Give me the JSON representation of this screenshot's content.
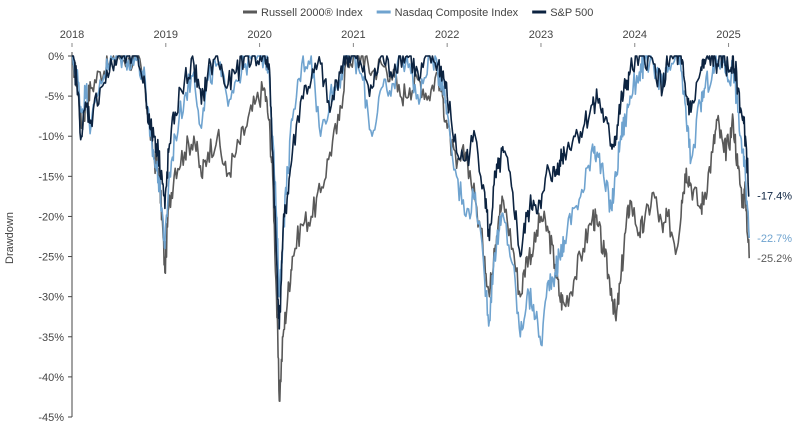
{
  "chart_data": {
    "type": "line",
    "title": "",
    "xlabel": "",
    "ylabel": "Drawdown",
    "x_ticks": [
      "2018",
      "2019",
      "2020",
      "2021",
      "2022",
      "2023",
      "2024",
      "2025"
    ],
    "y_ticks": [
      "0%",
      "-5%",
      "-10%",
      "-15%",
      "-20%",
      "-25%",
      "-30%",
      "-35%",
      "-40%",
      "-45%"
    ],
    "xlim": [
      2018.0,
      2025.25
    ],
    "ylim": [
      -45,
      0
    ],
    "grid": false,
    "legend_position": "top",
    "series": [
      {
        "name": "Russell 2000® Index",
        "color": "#595959",
        "end_label": "-25.2%",
        "points": [
          [
            2018.0,
            0
          ],
          [
            2018.05,
            -3
          ],
          [
            2018.1,
            -9
          ],
          [
            2018.15,
            -6
          ],
          [
            2018.2,
            -4
          ],
          [
            2018.3,
            -2
          ],
          [
            2018.4,
            -1
          ],
          [
            2018.5,
            0
          ],
          [
            2018.6,
            -0.5
          ],
          [
            2018.7,
            -0.3
          ],
          [
            2018.78,
            -4
          ],
          [
            2018.83,
            -9
          ],
          [
            2018.88,
            -13
          ],
          [
            2018.92,
            -14
          ],
          [
            2018.96,
            -20
          ],
          [
            2018.99,
            -27
          ],
          [
            2019.03,
            -19
          ],
          [
            2019.1,
            -14
          ],
          [
            2019.2,
            -12
          ],
          [
            2019.3,
            -10
          ],
          [
            2019.38,
            -15
          ],
          [
            2019.45,
            -12
          ],
          [
            2019.55,
            -10
          ],
          [
            2019.65,
            -15
          ],
          [
            2019.75,
            -12
          ],
          [
            2019.85,
            -9
          ],
          [
            2019.95,
            -6
          ],
          [
            2020.05,
            -4
          ],
          [
            2020.1,
            -8
          ],
          [
            2020.14,
            -15
          ],
          [
            2020.18,
            -30
          ],
          [
            2020.21,
            -43
          ],
          [
            2020.25,
            -35
          ],
          [
            2020.3,
            -30
          ],
          [
            2020.35,
            -25
          ],
          [
            2020.45,
            -21
          ],
          [
            2020.55,
            -20
          ],
          [
            2020.65,
            -17
          ],
          [
            2020.75,
            -12
          ],
          [
            2020.85,
            -8
          ],
          [
            2020.92,
            -1
          ],
          [
            2021.0,
            0
          ],
          [
            2021.1,
            0
          ],
          [
            2021.2,
            -2
          ],
          [
            2021.3,
            -1
          ],
          [
            2021.4,
            -2
          ],
          [
            2021.5,
            -5
          ],
          [
            2021.6,
            -4
          ],
          [
            2021.7,
            -3
          ],
          [
            2021.8,
            -5
          ],
          [
            2021.9,
            -2
          ],
          [
            2021.95,
            -5
          ],
          [
            2022.0,
            -9
          ],
          [
            2022.1,
            -14
          ],
          [
            2022.2,
            -12
          ],
          [
            2022.3,
            -18
          ],
          [
            2022.4,
            -25
          ],
          [
            2022.45,
            -30
          ],
          [
            2022.5,
            -24
          ],
          [
            2022.55,
            -20
          ],
          [
            2022.6,
            -18
          ],
          [
            2022.7,
            -24
          ],
          [
            2022.78,
            -30
          ],
          [
            2022.85,
            -25
          ],
          [
            2022.92,
            -24
          ],
          [
            2023.0,
            -20
          ],
          [
            2023.08,
            -22
          ],
          [
            2023.15,
            -26
          ],
          [
            2023.2,
            -30
          ],
          [
            2023.25,
            -31
          ],
          [
            2023.35,
            -28
          ],
          [
            2023.45,
            -24
          ],
          [
            2023.55,
            -20
          ],
          [
            2023.6,
            -21
          ],
          [
            2023.68,
            -25
          ],
          [
            2023.75,
            -29
          ],
          [
            2023.8,
            -33
          ],
          [
            2023.85,
            -28
          ],
          [
            2023.9,
            -22
          ],
          [
            2023.95,
            -18
          ],
          [
            2024.05,
            -22
          ],
          [
            2024.1,
            -21
          ],
          [
            2024.2,
            -17
          ],
          [
            2024.3,
            -22
          ],
          [
            2024.35,
            -20
          ],
          [
            2024.45,
            -24
          ],
          [
            2024.5,
            -18
          ],
          [
            2024.55,
            -14
          ],
          [
            2024.6,
            -16
          ],
          [
            2024.7,
            -19
          ],
          [
            2024.75,
            -17
          ],
          [
            2024.83,
            -12
          ],
          [
            2024.88,
            -8
          ],
          [
            2024.95,
            -12
          ],
          [
            2025.0,
            -11
          ],
          [
            2025.05,
            -8
          ],
          [
            2025.1,
            -14
          ],
          [
            2025.15,
            -18
          ],
          [
            2025.18,
            -17
          ],
          [
            2025.22,
            -25.2
          ]
        ]
      },
      {
        "name": "Nasdaq Composite Index",
        "color": "#6fa3cf",
        "end_label": "-22.7%",
        "points": [
          [
            2018.0,
            0
          ],
          [
            2018.05,
            -2
          ],
          [
            2018.1,
            -7
          ],
          [
            2018.15,
            -4
          ],
          [
            2018.2,
            -9
          ],
          [
            2018.3,
            -3
          ],
          [
            2018.4,
            -1
          ],
          [
            2018.5,
            0
          ],
          [
            2018.6,
            -0.5
          ],
          [
            2018.7,
            -0.3
          ],
          [
            2018.78,
            -3
          ],
          [
            2018.83,
            -10
          ],
          [
            2018.88,
            -13
          ],
          [
            2018.92,
            -15
          ],
          [
            2018.96,
            -19
          ],
          [
            2018.99,
            -24
          ],
          [
            2019.03,
            -16
          ],
          [
            2019.1,
            -10
          ],
          [
            2019.2,
            -5
          ],
          [
            2019.3,
            -2
          ],
          [
            2019.38,
            -9
          ],
          [
            2019.45,
            -3
          ],
          [
            2019.55,
            -1
          ],
          [
            2019.65,
            -5
          ],
          [
            2019.75,
            -3
          ],
          [
            2019.85,
            -1
          ],
          [
            2019.95,
            0
          ],
          [
            2020.05,
            0
          ],
          [
            2020.1,
            -1
          ],
          [
            2020.14,
            -10
          ],
          [
            2020.18,
            -20
          ],
          [
            2020.21,
            -30
          ],
          [
            2020.25,
            -22
          ],
          [
            2020.3,
            -14
          ],
          [
            2020.35,
            -8
          ],
          [
            2020.45,
            -1
          ],
          [
            2020.55,
            0
          ],
          [
            2020.65,
            -10
          ],
          [
            2020.75,
            -5
          ],
          [
            2020.85,
            -3
          ],
          [
            2020.92,
            0
          ],
          [
            2021.0,
            0
          ],
          [
            2021.1,
            -3
          ],
          [
            2021.2,
            -10
          ],
          [
            2021.3,
            -4
          ],
          [
            2021.4,
            -5
          ],
          [
            2021.5,
            0
          ],
          [
            2021.6,
            -1
          ],
          [
            2021.7,
            -6
          ],
          [
            2021.8,
            0
          ],
          [
            2021.9,
            -2
          ],
          [
            2021.95,
            -3
          ],
          [
            2022.0,
            -7
          ],
          [
            2022.1,
            -15
          ],
          [
            2022.2,
            -20
          ],
          [
            2022.3,
            -17
          ],
          [
            2022.4,
            -28
          ],
          [
            2022.45,
            -33
          ],
          [
            2022.5,
            -25
          ],
          [
            2022.55,
            -22
          ],
          [
            2022.6,
            -20
          ],
          [
            2022.7,
            -26
          ],
          [
            2022.78,
            -35
          ],
          [
            2022.85,
            -30
          ],
          [
            2022.92,
            -31
          ],
          [
            2023.0,
            -36
          ],
          [
            2023.08,
            -28
          ],
          [
            2023.15,
            -27
          ],
          [
            2023.2,
            -25
          ],
          [
            2023.25,
            -23
          ],
          [
            2023.35,
            -19
          ],
          [
            2023.45,
            -17
          ],
          [
            2023.55,
            -11
          ],
          [
            2023.6,
            -12
          ],
          [
            2023.68,
            -16
          ],
          [
            2023.75,
            -19
          ],
          [
            2023.8,
            -15
          ],
          [
            2023.85,
            -10
          ],
          [
            2023.9,
            -8
          ],
          [
            2023.95,
            -5
          ],
          [
            2024.05,
            -2
          ],
          [
            2024.1,
            -1
          ],
          [
            2024.2,
            -1
          ],
          [
            2024.3,
            -4
          ],
          [
            2024.35,
            -2
          ],
          [
            2024.45,
            0
          ],
          [
            2024.5,
            -2
          ],
          [
            2024.55,
            -8
          ],
          [
            2024.6,
            -13
          ],
          [
            2024.7,
            -6
          ],
          [
            2024.75,
            -4
          ],
          [
            2024.83,
            -2
          ],
          [
            2024.88,
            -1
          ],
          [
            2024.95,
            0
          ],
          [
            2025.0,
            -3
          ],
          [
            2025.05,
            -1
          ],
          [
            2025.1,
            -7
          ],
          [
            2025.15,
            -12
          ],
          [
            2025.18,
            -15
          ],
          [
            2025.22,
            -22.7
          ]
        ]
      },
      {
        "name": "S&P 500",
        "color": "#0c2340",
        "end_label": "-17.4%",
        "points": [
          [
            2018.0,
            0
          ],
          [
            2018.05,
            -3
          ],
          [
            2018.1,
            -10
          ],
          [
            2018.15,
            -6
          ],
          [
            2018.2,
            -8
          ],
          [
            2018.3,
            -4
          ],
          [
            2018.4,
            -2
          ],
          [
            2018.5,
            0
          ],
          [
            2018.6,
            0
          ],
          [
            2018.7,
            0
          ],
          [
            2018.78,
            -4
          ],
          [
            2018.83,
            -9
          ],
          [
            2018.88,
            -10
          ],
          [
            2018.92,
            -12
          ],
          [
            2018.96,
            -15
          ],
          [
            2018.99,
            -19
          ],
          [
            2019.03,
            -12
          ],
          [
            2019.1,
            -7
          ],
          [
            2019.2,
            -3
          ],
          [
            2019.3,
            -1
          ],
          [
            2019.38,
            -6
          ],
          [
            2019.45,
            -2
          ],
          [
            2019.55,
            0
          ],
          [
            2019.65,
            -4
          ],
          [
            2019.75,
            -2
          ],
          [
            2019.85,
            0
          ],
          [
            2019.95,
            0
          ],
          [
            2020.05,
            0
          ],
          [
            2020.1,
            -1
          ],
          [
            2020.14,
            -12
          ],
          [
            2020.18,
            -25
          ],
          [
            2020.21,
            -34
          ],
          [
            2020.25,
            -22
          ],
          [
            2020.3,
            -17
          ],
          [
            2020.35,
            -12
          ],
          [
            2020.45,
            -5
          ],
          [
            2020.55,
            -3
          ],
          [
            2020.65,
            -1
          ],
          [
            2020.75,
            -7
          ],
          [
            2020.85,
            -2
          ],
          [
            2020.92,
            0
          ],
          [
            2021.0,
            0
          ],
          [
            2021.1,
            -2
          ],
          [
            2021.2,
            -4
          ],
          [
            2021.3,
            0
          ],
          [
            2021.4,
            -2
          ],
          [
            2021.5,
            0
          ],
          [
            2021.6,
            0
          ],
          [
            2021.7,
            -3
          ],
          [
            2021.8,
            0
          ],
          [
            2021.9,
            -1
          ],
          [
            2021.95,
            -2
          ],
          [
            2022.0,
            -5
          ],
          [
            2022.1,
            -12
          ],
          [
            2022.2,
            -13
          ],
          [
            2022.3,
            -10
          ],
          [
            2022.4,
            -17
          ],
          [
            2022.45,
            -23
          ],
          [
            2022.5,
            -16
          ],
          [
            2022.55,
            -14
          ],
          [
            2022.6,
            -12
          ],
          [
            2022.7,
            -17
          ],
          [
            2022.78,
            -25
          ],
          [
            2022.85,
            -20
          ],
          [
            2022.92,
            -18
          ],
          [
            2023.0,
            -19
          ],
          [
            2023.08,
            -14
          ],
          [
            2023.15,
            -15
          ],
          [
            2023.2,
            -13
          ],
          [
            2023.25,
            -12
          ],
          [
            2023.35,
            -10
          ],
          [
            2023.45,
            -9
          ],
          [
            2023.55,
            -6
          ],
          [
            2023.6,
            -5
          ],
          [
            2023.68,
            -8
          ],
          [
            2023.75,
            -11
          ],
          [
            2023.8,
            -10
          ],
          [
            2023.85,
            -6
          ],
          [
            2023.9,
            -4
          ],
          [
            2023.95,
            -2
          ],
          [
            2024.05,
            0
          ],
          [
            2024.1,
            0
          ],
          [
            2024.2,
            -1
          ],
          [
            2024.3,
            -4
          ],
          [
            2024.35,
            -1
          ],
          [
            2024.45,
            0
          ],
          [
            2024.5,
            -1
          ],
          [
            2024.55,
            -5
          ],
          [
            2024.6,
            -7
          ],
          [
            2024.7,
            -2
          ],
          [
            2024.75,
            -1
          ],
          [
            2024.83,
            0
          ],
          [
            2024.88,
            -1
          ],
          [
            2024.95,
            0
          ],
          [
            2025.0,
            -2
          ],
          [
            2025.05,
            0
          ],
          [
            2025.1,
            -4
          ],
          [
            2025.15,
            -8
          ],
          [
            2025.18,
            -10
          ],
          [
            2025.22,
            -17.4
          ]
        ]
      }
    ]
  }
}
